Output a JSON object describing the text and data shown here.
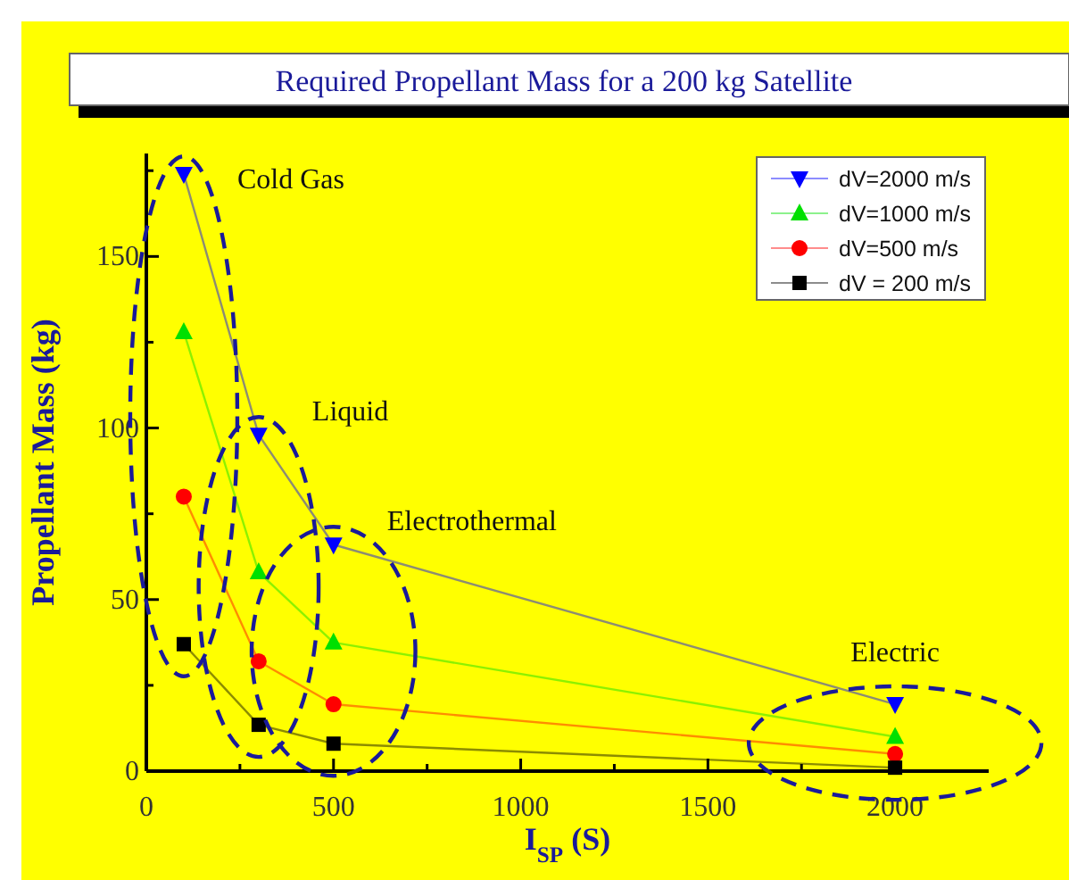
{
  "chart_data": {
    "type": "line",
    "title": "Required Propellant Mass for a 200 kg  Satellite",
    "xlabel": "I$_{SP}$ (S)",
    "ylabel": "Propellant Mass (kg)",
    "x": [
      100,
      300,
      500,
      2000
    ],
    "series": [
      {
        "name": "dV=2000 m/s",
        "color": "#0000ff",
        "marker": "triangle-down",
        "values": [
          174,
          98,
          66,
          19.5
        ]
      },
      {
        "name": "dV=1000 m/s",
        "color": "#00e000",
        "marker": "triangle",
        "values": [
          128,
          58,
          37.5,
          10
        ]
      },
      {
        "name": "dV=500 m/s",
        "color": "#ff0000",
        "marker": "circle",
        "values": [
          80,
          32,
          19.5,
          5
        ]
      },
      {
        "name": "dV = 200 m/s",
        "color": "#000000",
        "marker": "square",
        "values": [
          37,
          13.5,
          8,
          1
        ]
      }
    ],
    "xlim": [
      0,
      2250
    ],
    "ylim": [
      0,
      180
    ],
    "xticks": [
      0,
      {
        "value": 250,
        "label": null
      },
      500,
      {
        "value": 750,
        "label": null
      },
      1000,
      {
        "value": 1250,
        "label": null
      },
      1500,
      {
        "value": 1750,
        "label": null
      },
      2000
    ],
    "yticks": [
      0,
      {
        "value": 25,
        "label": null
      },
      50,
      {
        "value": 75,
        "label": null
      },
      100,
      {
        "value": 125,
        "label": null
      },
      150,
      {
        "value": 175,
        "label": null
      }
    ],
    "annotations": [
      "Cold Gas",
      "Liquid",
      "Electrothermal",
      "Electric"
    ],
    "legend": "top right",
    "grid": false
  }
}
